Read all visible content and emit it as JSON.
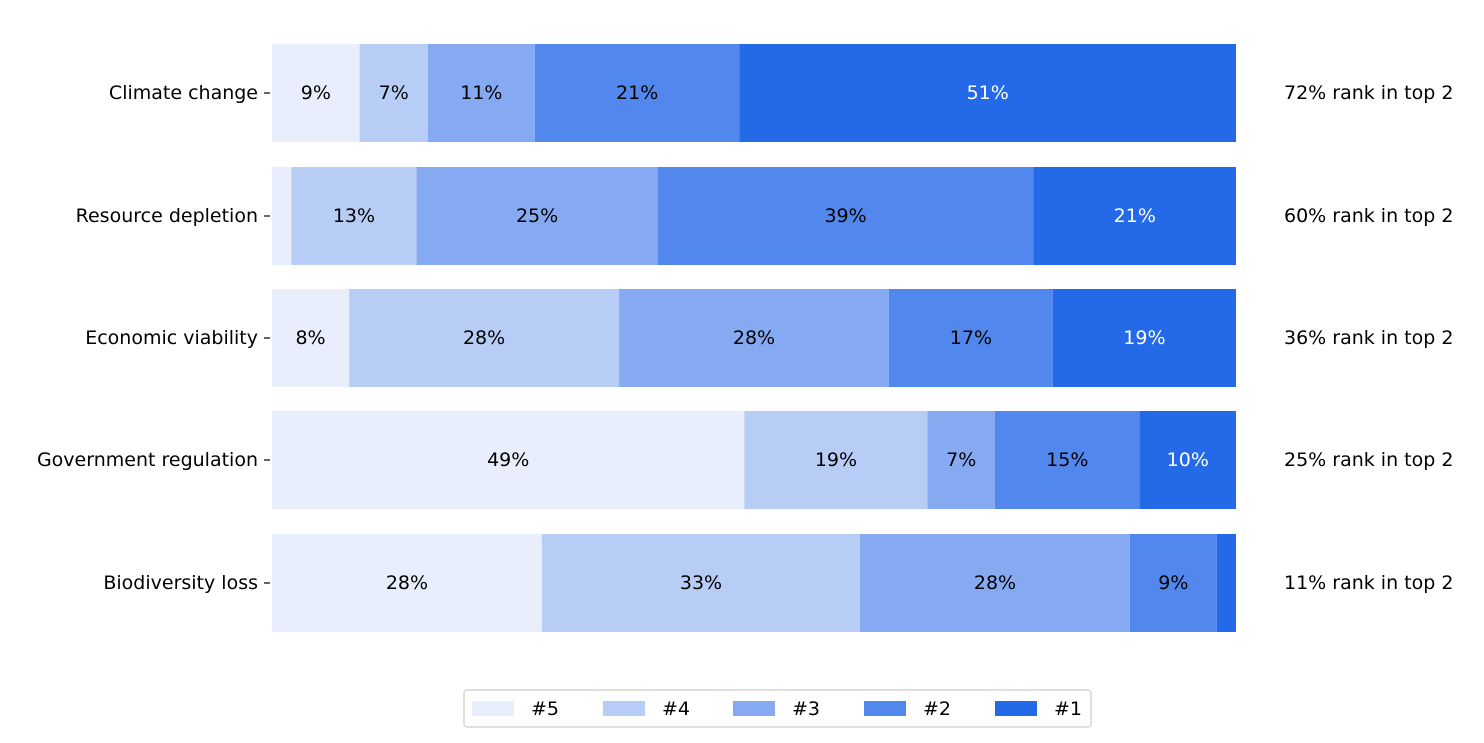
{
  "chart_data": {
    "type": "bar",
    "orientation": "horizontal",
    "stacked": true,
    "categories": [
      "Climate change",
      "Resource depletion",
      "Economic viability",
      "Government regulation",
      "Biodiversity loss"
    ],
    "series": [
      {
        "name": "#5",
        "color": "#e8eefb",
        "values": [
          9,
          2,
          8,
          49,
          28
        ],
        "labels": [
          "9%",
          "",
          "8%",
          "49%",
          "28%"
        ]
      },
      {
        "name": "#4",
        "color": "#b7cdf6",
        "values": [
          7,
          13,
          28,
          19,
          33
        ],
        "labels": [
          "7%",
          "13%",
          "28%",
          "19%",
          "33%"
        ]
      },
      {
        "name": "#3",
        "color": "#86aaf1",
        "values": [
          11,
          25,
          28,
          7,
          28
        ],
        "labels": [
          "11%",
          "25%",
          "28%",
          "7%",
          "28%"
        ]
      },
      {
        "name": "#2",
        "color": "#5288ed",
        "values": [
          21,
          39,
          17,
          15,
          9
        ],
        "labels": [
          "21%",
          "39%",
          "17%",
          "15%",
          "9%"
        ]
      },
      {
        "name": "#1",
        "color": "#2369e8",
        "values": [
          51,
          21,
          19,
          10,
          2
        ],
        "labels": [
          "51%",
          "21%",
          "19%",
          "10%",
          ""
        ]
      }
    ],
    "right_annotations": [
      "72% rank in top 2",
      "60% rank in top 2",
      "36% rank in top 2",
      "25% rank in top 2",
      "11% rank in top 2"
    ],
    "legend_position": "bottom-center",
    "grid": false
  }
}
